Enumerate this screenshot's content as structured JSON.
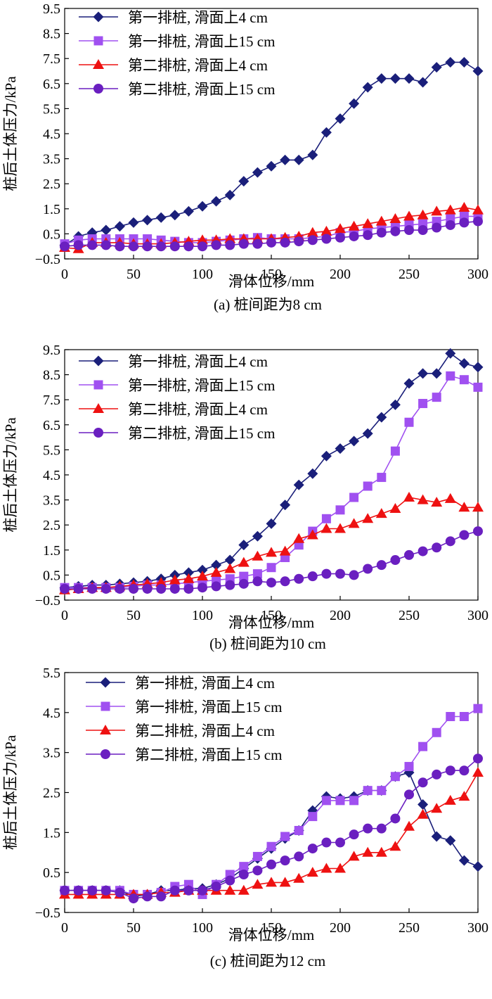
{
  "charts": [
    {
      "caption": "(a) 桩间距为8 cm",
      "chart_data": {
        "type": "line",
        "xlabel": "滑体位移/mm",
        "ylabel": "桩后土体压力/kPa",
        "xlim": [
          0,
          300
        ],
        "ylim": [
          -0.5,
          9.5
        ],
        "xticks": [
          0,
          50,
          100,
          150,
          200,
          250,
          300
        ],
        "yticks": [
          -0.5,
          0.5,
          1.5,
          2.5,
          3.5,
          4.5,
          5.5,
          6.5,
          7.5,
          8.5,
          9.5
        ],
        "xtick_labels": [
          "0",
          "50",
          "100",
          "150",
          "200",
          "250",
          "300"
        ],
        "ytick_labels": [
          "−0.5",
          "0.5",
          "1.5",
          "2.5",
          "3.5",
          "4.5",
          "5.5",
          "6.5",
          "7.5",
          "8.5",
          "9.5"
        ],
        "grid": false,
        "legend_position": "top-left",
        "x": [
          0,
          10,
          20,
          30,
          40,
          50,
          60,
          70,
          80,
          90,
          100,
          110,
          120,
          130,
          140,
          150,
          160,
          170,
          180,
          190,
          200,
          210,
          220,
          230,
          240,
          250,
          260,
          270,
          280,
          290,
          300
        ],
        "series": [
          {
            "name": "第一排桩, 滑面上4 cm",
            "marker": "diamond",
            "color": "#1a1f7a",
            "values": [
              0.05,
              0.4,
              0.55,
              0.65,
              0.8,
              0.95,
              1.05,
              1.15,
              1.25,
              1.4,
              1.6,
              1.8,
              2.05,
              2.6,
              2.95,
              3.2,
              3.45,
              3.45,
              3.65,
              4.55,
              5.1,
              5.7,
              6.35,
              6.7,
              6.7,
              6.7,
              6.55,
              7.15,
              7.35,
              7.35,
              7.0
            ]
          },
          {
            "name": "第一排桩, 滑面上15 cm",
            "marker": "square",
            "color": "#a050f0",
            "values": [
              0.1,
              0.25,
              0.3,
              0.3,
              0.3,
              0.3,
              0.3,
              0.25,
              0.2,
              0.15,
              0.15,
              0.2,
              0.25,
              0.3,
              0.35,
              0.3,
              0.3,
              0.3,
              0.35,
              0.4,
              0.55,
              0.6,
              0.7,
              0.75,
              0.8,
              0.85,
              0.9,
              1.0,
              1.1,
              1.2,
              1.2
            ]
          },
          {
            "name": "第二排桩, 滑面上4 cm",
            "marker": "triangle",
            "color": "#ee1111",
            "values": [
              -0.05,
              -0.1,
              0.15,
              0.15,
              0.15,
              0.1,
              0.1,
              0.1,
              0.15,
              0.2,
              0.25,
              0.25,
              0.3,
              0.3,
              0.3,
              0.3,
              0.35,
              0.4,
              0.55,
              0.6,
              0.7,
              0.8,
              0.9,
              1.0,
              1.1,
              1.2,
              1.25,
              1.4,
              1.45,
              1.55,
              1.45
            ]
          },
          {
            "name": "第二排桩, 滑面上15 cm",
            "marker": "circle",
            "color": "#6a1fc0",
            "values": [
              0.0,
              0.05,
              0.05,
              0.05,
              0.0,
              0.0,
              0.0,
              0.0,
              0.0,
              0.0,
              0.0,
              0.05,
              0.05,
              0.1,
              0.1,
              0.15,
              0.15,
              0.2,
              0.25,
              0.3,
              0.35,
              0.4,
              0.45,
              0.55,
              0.6,
              0.65,
              0.65,
              0.75,
              0.85,
              0.95,
              1.0
            ]
          }
        ]
      }
    },
    {
      "caption": "(b) 桩间距为10 cm",
      "chart_data": {
        "type": "line",
        "xlabel": "滑体位移/mm",
        "ylabel": "桩后土体压力/kPa",
        "xlim": [
          0,
          300
        ],
        "ylim": [
          -0.5,
          9.5
        ],
        "xticks": [
          0,
          50,
          100,
          150,
          200,
          250,
          300
        ],
        "yticks": [
          -0.5,
          0.5,
          1.5,
          2.5,
          3.5,
          4.5,
          5.5,
          6.5,
          7.5,
          8.5,
          9.5
        ],
        "xtick_labels": [
          "0",
          "50",
          "100",
          "150",
          "200",
          "250",
          "300"
        ],
        "ytick_labels": [
          "−0.5",
          "0.5",
          "1.5",
          "2.5",
          "3.5",
          "4.5",
          "5.5",
          "6.5",
          "7.5",
          "8.5",
          "9.5"
        ],
        "grid": false,
        "legend_position": "top-left",
        "x": [
          0,
          10,
          20,
          30,
          40,
          50,
          60,
          70,
          80,
          90,
          100,
          110,
          120,
          130,
          140,
          150,
          160,
          170,
          180,
          190,
          200,
          210,
          220,
          230,
          240,
          250,
          260,
          270,
          280,
          290,
          300
        ],
        "series": [
          {
            "name": "第一排桩, 滑面上4 cm",
            "marker": "diamond",
            "color": "#1a1f7a",
            "values": [
              0.0,
              0.05,
              0.1,
              0.1,
              0.15,
              0.2,
              0.25,
              0.35,
              0.5,
              0.6,
              0.7,
              0.9,
              1.1,
              1.7,
              2.05,
              2.55,
              3.3,
              4.1,
              4.55,
              5.25,
              5.55,
              5.85,
              6.15,
              6.8,
              7.3,
              8.15,
              8.55,
              8.55,
              9.35,
              8.95,
              8.8
            ]
          },
          {
            "name": "第一排桩, 滑面上15 cm",
            "marker": "square",
            "color": "#a050f0",
            "values": [
              0.0,
              0.0,
              0.0,
              0.0,
              0.0,
              0.05,
              0.1,
              0.1,
              0.15,
              0.2,
              0.25,
              0.3,
              0.35,
              0.45,
              0.55,
              0.8,
              1.2,
              1.7,
              2.25,
              2.75,
              3.1,
              3.6,
              4.05,
              4.4,
              5.45,
              6.6,
              7.35,
              7.6,
              8.45,
              8.3,
              8.0
            ]
          },
          {
            "name": "第二排桩, 滑面上4 cm",
            "marker": "triangle",
            "color": "#ee1111",
            "values": [
              -0.1,
              -0.05,
              0.0,
              0.0,
              0.05,
              0.1,
              0.15,
              0.2,
              0.3,
              0.35,
              0.45,
              0.6,
              0.75,
              1.0,
              1.25,
              1.4,
              1.45,
              1.95,
              2.1,
              2.35,
              2.35,
              2.55,
              2.75,
              2.95,
              3.15,
              3.6,
              3.5,
              3.4,
              3.55,
              3.2,
              3.2
            ]
          },
          {
            "name": "第二排桩, 滑面上15 cm",
            "marker": "circle",
            "color": "#6a1fc0",
            "values": [
              -0.05,
              -0.05,
              -0.05,
              -0.05,
              -0.05,
              -0.05,
              -0.05,
              -0.05,
              -0.05,
              -0.05,
              0.0,
              0.05,
              0.1,
              0.15,
              0.25,
              0.2,
              0.25,
              0.35,
              0.45,
              0.55,
              0.55,
              0.5,
              0.75,
              0.9,
              1.1,
              1.3,
              1.45,
              1.6,
              1.85,
              2.1,
              2.25
            ]
          }
        ]
      }
    },
    {
      "caption": "(c) 桩间距为12 cm",
      "chart_data": {
        "type": "line",
        "xlabel": "滑体位移/mm",
        "ylabel": "桩后土体压力/kPa",
        "xlim": [
          0,
          300
        ],
        "ylim": [
          -0.5,
          5.5
        ],
        "xticks": [
          0,
          50,
          100,
          150,
          200,
          250,
          300
        ],
        "yticks": [
          -0.5,
          0.5,
          1.5,
          2.5,
          3.5,
          4.5,
          5.5
        ],
        "xtick_labels": [
          "0",
          "50",
          "100",
          "150",
          "200",
          "250",
          "300"
        ],
        "ytick_labels": [
          "−0.5",
          "0.5",
          "1.5",
          "2.5",
          "3.5",
          "4.5",
          "5.5"
        ],
        "grid": false,
        "legend_position": "top-left",
        "x": [
          0,
          10,
          20,
          30,
          40,
          50,
          60,
          70,
          80,
          90,
          100,
          110,
          120,
          130,
          140,
          150,
          160,
          170,
          180,
          190,
          200,
          210,
          220,
          230,
          240,
          250,
          260,
          270,
          280,
          290,
          300
        ],
        "series": [
          {
            "name": "第一排桩, 滑面上4 cm",
            "marker": "diamond",
            "color": "#1a1f7a",
            "values": [
              0.05,
              0.05,
              0.05,
              0.05,
              0.05,
              -0.1,
              -0.05,
              0.05,
              0.05,
              0.1,
              0.1,
              0.2,
              0.35,
              0.6,
              0.85,
              1.1,
              1.35,
              1.55,
              2.05,
              2.4,
              2.35,
              2.4,
              2.55,
              2.55,
              2.9,
              3.0,
              2.2,
              1.4,
              1.3,
              0.8,
              0.65
            ]
          },
          {
            "name": "第一排桩, 滑面上15 cm",
            "marker": "square",
            "color": "#a050f0",
            "values": [
              0.05,
              0.05,
              0.05,
              0.05,
              0.05,
              -0.05,
              -0.05,
              0.0,
              0.15,
              0.2,
              -0.05,
              0.2,
              0.45,
              0.65,
              0.9,
              1.15,
              1.4,
              1.55,
              1.9,
              2.3,
              2.3,
              2.3,
              2.55,
              2.55,
              2.9,
              3.15,
              3.65,
              4.0,
              4.4,
              4.4,
              4.6
            ]
          },
          {
            "name": "第二排桩, 滑面上4 cm",
            "marker": "triangle",
            "color": "#ee1111",
            "values": [
              -0.05,
              -0.05,
              -0.05,
              -0.05,
              -0.05,
              -0.05,
              -0.05,
              0.0,
              0.0,
              0.05,
              0.05,
              0.05,
              0.05,
              0.05,
              0.2,
              0.25,
              0.25,
              0.35,
              0.5,
              0.6,
              0.6,
              0.9,
              1.0,
              1.0,
              1.15,
              1.65,
              1.95,
              2.1,
              2.3,
              2.4,
              3.0
            ]
          },
          {
            "name": "第二排桩, 滑面上15 cm",
            "marker": "circle",
            "color": "#6a1fc0",
            "values": [
              0.05,
              0.05,
              0.05,
              0.05,
              0.0,
              -0.15,
              -0.1,
              -0.1,
              0.05,
              0.05,
              0.05,
              0.15,
              0.3,
              0.45,
              0.55,
              0.7,
              0.8,
              0.9,
              1.1,
              1.25,
              1.25,
              1.45,
              1.6,
              1.6,
              1.85,
              2.45,
              2.75,
              2.95,
              3.05,
              3.05,
              3.35
            ]
          }
        ]
      }
    }
  ]
}
